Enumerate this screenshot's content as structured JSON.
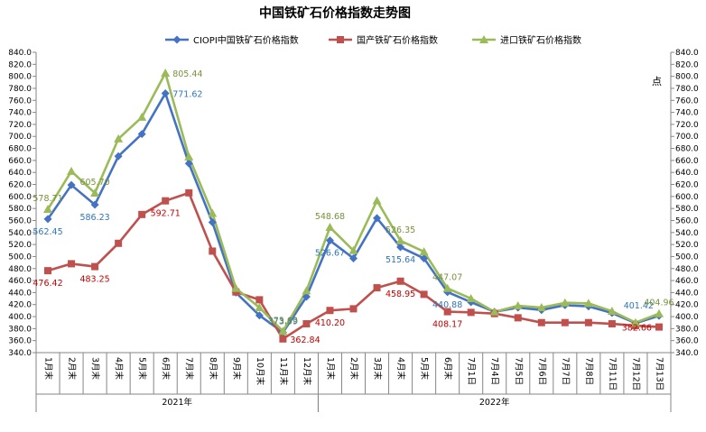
{
  "chart_data": {
    "type": "line",
    "title": "中国铁矿石价格指数走势图",
    "unit_label": "点",
    "categories": [
      "1月末",
      "2月末",
      "3月末",
      "4月末",
      "5月末",
      "6月末",
      "7月末",
      "8月末",
      "9月末",
      "10月末",
      "11月末",
      "12月末",
      "1月末",
      "2月末",
      "3月末",
      "4月末",
      "5月末",
      "6月末",
      "7月1日",
      "7月4日",
      "7月5日",
      "7月6日",
      "7月7日",
      "7月8日",
      "7月11日",
      "7月12日",
      "7月13日"
    ],
    "groups": [
      {
        "label": "2021年",
        "start": 0,
        "end": 11
      },
      {
        "label": "2022年",
        "start": 12,
        "end": 26
      }
    ],
    "ylim": [
      340,
      840
    ],
    "ytick_step": 20,
    "grid": false,
    "legend_position": "top",
    "series": [
      {
        "name": "CIOPI中国铁矿石价格指数",
        "color": "#4472C4",
        "marker": "diamond",
        "label_color": "#2E75B6",
        "values": [
          562.45,
          619,
          586.23,
          667,
          704,
          771.62,
          655,
          557,
          440,
          402,
          373.59,
          433,
          526.67,
          497,
          564,
          515.64,
          497,
          440.88,
          424,
          408,
          415,
          411,
          419,
          417,
          406,
          389,
          401.42
        ],
        "labels": [
          {
            "i": 0,
            "text": "562.45",
            "pos": "below"
          },
          {
            "i": 2,
            "text": "586.23",
            "pos": "below"
          },
          {
            "i": 5,
            "text": "771.62",
            "pos": "right"
          },
          {
            "i": 10,
            "text": "373.59",
            "pos": "above"
          },
          {
            "i": 12,
            "text": "526.67",
            "pos": "below"
          },
          {
            "i": 15,
            "text": "515.64",
            "pos": "below"
          },
          {
            "i": 17,
            "text": "440.88",
            "pos": "below"
          },
          {
            "i": 26,
            "text": "401.42",
            "pos": "above-left"
          }
        ]
      },
      {
        "name": "国产铁矿石价格指数",
        "color": "#C0504D",
        "marker": "square",
        "label_color": "#C00000",
        "values": [
          476.42,
          488,
          483.25,
          522,
          570,
          592.71,
          606,
          509,
          441,
          428,
          362.84,
          388,
          410.2,
          413,
          448,
          458.95,
          437,
          408.17,
          407,
          405,
          398,
          390,
          390,
          390,
          388,
          385,
          382.66
        ],
        "labels": [
          {
            "i": 0,
            "text": "476.42",
            "pos": "below"
          },
          {
            "i": 2,
            "text": "483.25",
            "pos": "below"
          },
          {
            "i": 5,
            "text": "592.71",
            "pos": "below"
          },
          {
            "i": 10,
            "text": "362.84",
            "pos": "right"
          },
          {
            "i": 12,
            "text": "410.20",
            "pos": "below"
          },
          {
            "i": 15,
            "text": "458.95",
            "pos": "below"
          },
          {
            "i": 17,
            "text": "408.17",
            "pos": "below"
          },
          {
            "i": 26,
            "text": "382.66",
            "pos": "left"
          }
        ]
      },
      {
        "name": "进口铁矿石价格指数",
        "color": "#9BBB59",
        "marker": "triangle",
        "label_color": "#76923C",
        "values": [
          578.71,
          642,
          605.7,
          696,
          732,
          805.44,
          666,
          572,
          447,
          415,
          375.63,
          443,
          548.68,
          510,
          593,
          526.35,
          508,
          447.07,
          430,
          408,
          418,
          415,
          423,
          422,
          409,
          390,
          404.96
        ],
        "labels": [
          {
            "i": 0,
            "text": "578.71",
            "pos": "above"
          },
          {
            "i": 2,
            "text": "605.70",
            "pos": "above"
          },
          {
            "i": 5,
            "text": "805.44",
            "pos": "right"
          },
          {
            "i": 10,
            "text": "375.63",
            "pos": "above"
          },
          {
            "i": 12,
            "text": "548.68",
            "pos": "above"
          },
          {
            "i": 15,
            "text": "526.35",
            "pos": "above"
          },
          {
            "i": 17,
            "text": "447.07",
            "pos": "above"
          },
          {
            "i": 26,
            "text": "404.96",
            "pos": "above"
          }
        ]
      }
    ]
  }
}
